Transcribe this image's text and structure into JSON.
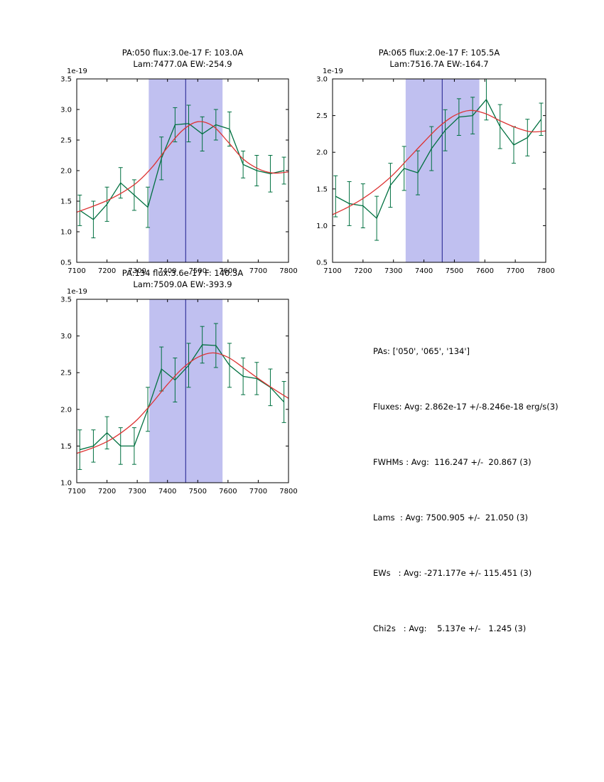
{
  "colors": {
    "data_series": "#007040",
    "fit_curve": "#dd3333",
    "band": "rgba(90,90,215,0.38)",
    "vline": "#1a1a8c",
    "axis": "#000000"
  },
  "chart_data": [
    {
      "type": "line",
      "title_line1": "PA:050 flux:3.0e-17 F: 103.0A",
      "title_line2": "Lam:7477.0A EW:-254.9",
      "offset_label": "1e-19",
      "xlim": [
        7100,
        7800
      ],
      "ylim": [
        0.5,
        3.5
      ],
      "xticks": [
        7100,
        7200,
        7300,
        7400,
        7500,
        7600,
        7700,
        7800
      ],
      "yticks": [
        0.5,
        1.0,
        1.5,
        2.0,
        2.5,
        3.0,
        3.5
      ],
      "band": [
        7338,
        7582
      ],
      "vline": 7460,
      "grid": false,
      "series": [
        {
          "name": "spectrum-with-errorbars",
          "x": [
            7110,
            7155,
            7200,
            7245,
            7290,
            7335,
            7380,
            7425,
            7470,
            7515,
            7560,
            7605,
            7650,
            7695,
            7740,
            7785
          ],
          "y": [
            1.35,
            1.2,
            1.45,
            1.8,
            1.6,
            1.4,
            2.2,
            2.75,
            2.77,
            2.6,
            2.75,
            2.68,
            2.1,
            2.0,
            1.95,
            2.0
          ],
          "yerr": [
            0.25,
            0.3,
            0.28,
            0.25,
            0.25,
            0.33,
            0.35,
            0.28,
            0.3,
            0.28,
            0.25,
            0.28,
            0.22,
            0.25,
            0.3,
            0.22
          ]
        },
        {
          "name": "gaussian-fit",
          "x": [
            7100,
            7150,
            7200,
            7250,
            7300,
            7350,
            7400,
            7450,
            7500,
            7550,
            7600,
            7650,
            7700,
            7750,
            7800
          ],
          "y": [
            1.32,
            1.41,
            1.51,
            1.64,
            1.81,
            2.06,
            2.38,
            2.66,
            2.8,
            2.73,
            2.47,
            2.19,
            2.03,
            1.96,
            1.98
          ]
        }
      ]
    },
    {
      "type": "line",
      "title_line1": "PA:065 flux:2.0e-17 F: 105.5A",
      "title_line2": "Lam:7516.7A EW:-164.7",
      "offset_label": "1e-19",
      "xlim": [
        7100,
        7800
      ],
      "ylim": [
        0.5,
        3.0
      ],
      "xticks": [
        7100,
        7200,
        7300,
        7400,
        7500,
        7600,
        7700,
        7800
      ],
      "yticks": [
        0.5,
        1.0,
        1.5,
        2.0,
        2.5,
        3.0
      ],
      "band": [
        7340,
        7582
      ],
      "vline": 7460,
      "grid": false,
      "series": [
        {
          "name": "spectrum-with-errorbars",
          "x": [
            7110,
            7155,
            7200,
            7245,
            7290,
            7335,
            7380,
            7425,
            7470,
            7515,
            7560,
            7605,
            7650,
            7695,
            7740,
            7785
          ],
          "y": [
            1.4,
            1.3,
            1.27,
            1.1,
            1.55,
            1.78,
            1.72,
            2.05,
            2.3,
            2.48,
            2.5,
            2.72,
            2.35,
            2.1,
            2.2,
            2.45
          ],
          "yerr": [
            0.28,
            0.3,
            0.3,
            0.3,
            0.3,
            0.3,
            0.3,
            0.3,
            0.28,
            0.25,
            0.25,
            0.28,
            0.3,
            0.25,
            0.25,
            0.22
          ]
        },
        {
          "name": "gaussian-fit",
          "x": [
            7100,
            7150,
            7200,
            7250,
            7300,
            7350,
            7400,
            7450,
            7500,
            7550,
            7600,
            7650,
            7700,
            7750,
            7800
          ],
          "y": [
            1.15,
            1.25,
            1.37,
            1.52,
            1.7,
            1.92,
            2.14,
            2.35,
            2.5,
            2.57,
            2.53,
            2.43,
            2.34,
            2.28,
            2.29
          ]
        }
      ]
    },
    {
      "type": "line",
      "title_line1": "PA:134 flux:3.6e-17 F: 140.3A",
      "title_line2": "Lam:7509.0A EW:-393.9",
      "offset_label": "1e-19",
      "xlim": [
        7100,
        7800
      ],
      "ylim": [
        1.0,
        3.5
      ],
      "xticks": [
        7100,
        7200,
        7300,
        7400,
        7500,
        7600,
        7700,
        7800
      ],
      "yticks": [
        1.0,
        1.5,
        2.0,
        2.5,
        3.0,
        3.5
      ],
      "band": [
        7340,
        7582
      ],
      "vline": 7460,
      "grid": false,
      "series": [
        {
          "name": "spectrum-with-errorbars",
          "x": [
            7110,
            7155,
            7200,
            7245,
            7290,
            7335,
            7380,
            7425,
            7470,
            7515,
            7560,
            7605,
            7650,
            7695,
            7740,
            7785
          ],
          "y": [
            1.45,
            1.5,
            1.68,
            1.5,
            1.5,
            2.0,
            2.55,
            2.4,
            2.6,
            2.88,
            2.87,
            2.6,
            2.45,
            2.42,
            2.3,
            2.1
          ],
          "yerr": [
            0.27,
            0.22,
            0.22,
            0.25,
            0.25,
            0.3,
            0.3,
            0.3,
            0.3,
            0.25,
            0.3,
            0.3,
            0.25,
            0.22,
            0.25,
            0.28
          ]
        },
        {
          "name": "gaussian-fit",
          "x": [
            7100,
            7150,
            7200,
            7250,
            7300,
            7350,
            7400,
            7450,
            7500,
            7550,
            7600,
            7650,
            7700,
            7750,
            7800
          ],
          "y": [
            1.4,
            1.47,
            1.56,
            1.69,
            1.86,
            2.09,
            2.34,
            2.56,
            2.71,
            2.77,
            2.71,
            2.57,
            2.42,
            2.28,
            2.15
          ]
        }
      ]
    }
  ],
  "summary": {
    "lines": [
      "PAs: ['050', '065', '134']",
      "Fluxes: Avg: 2.862e-17 +/-8.246e-18 erg/s(3)",
      "FWHMs : Avg:  116.247 +/-  20.867 (3)",
      "Lams  : Avg: 7500.905 +/-  21.050 (3)",
      "EWs   : Avg: -271.177e +/- 115.451 (3)",
      "Chi2s   : Avg:    5.137e +/-   1.245 (3)"
    ]
  }
}
